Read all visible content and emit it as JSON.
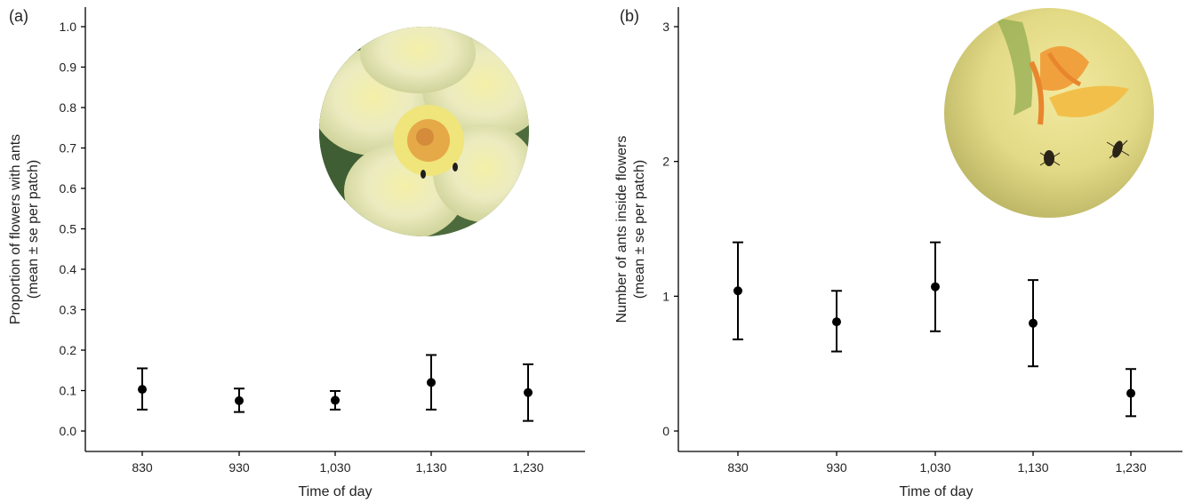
{
  "chart_data": [
    {
      "type": "scatter",
      "panel_label": "(a)",
      "xlabel": "Time of day",
      "ylabel": "Proportion of  flowers with ants",
      "ylabel2": "(mean ± se per patch)",
      "categories": [
        "830",
        "930",
        "1,030",
        "1,130",
        "1,230"
      ],
      "y_ticks": [
        "0.0",
        "0.1",
        "0.2",
        "0.3",
        "0.4",
        "0.5",
        "0.6",
        "0.7",
        "0.8",
        "0.9",
        "1.0"
      ],
      "ylim": [
        0,
        1.0
      ],
      "series": [
        {
          "mean": [
            0.103,
            0.075,
            0.076,
            0.12,
            0.095
          ],
          "lower": [
            0.053,
            0.047,
            0.053,
            0.053,
            0.025
          ],
          "upper": [
            0.155,
            0.105,
            0.099,
            0.188,
            0.165
          ]
        }
      ],
      "inset_photo": "flower-with-ants-photo",
      "grid": false
    },
    {
      "type": "scatter",
      "panel_label": "(b)",
      "xlabel": "Time of day",
      "ylabel": "Number of ants inside flowers",
      "ylabel2": "(mean ± se per patch)",
      "categories": [
        "830",
        "930",
        "1,030",
        "1,130",
        "1,230"
      ],
      "y_ticks": [
        "0",
        "1",
        "2",
        "3"
      ],
      "ylim": [
        0,
        3
      ],
      "series": [
        {
          "mean": [
            1.04,
            0.81,
            1.07,
            0.8,
            0.28
          ],
          "lower": [
            0.68,
            0.59,
            0.74,
            0.48,
            0.11
          ],
          "upper": [
            1.4,
            1.04,
            1.4,
            1.12,
            0.46
          ]
        }
      ],
      "inset_photo": "flower-closeup-ants-photo",
      "grid": false
    }
  ]
}
